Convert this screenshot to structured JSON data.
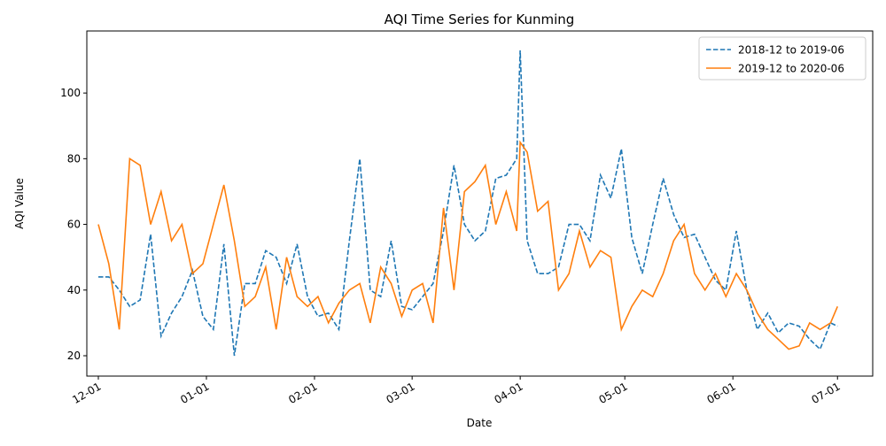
{
  "chart_data": {
    "type": "line",
    "title": "AQI Time Series for Kunming",
    "x_label": "Date",
    "y_label": "AQI Value",
    "x": [
      0,
      3,
      6,
      9,
      12,
      15,
      18,
      21,
      24,
      27,
      30,
      33,
      36,
      39,
      42,
      45,
      48,
      51,
      54,
      57,
      60,
      63,
      66,
      69,
      72,
      75,
      78,
      81,
      84,
      87,
      90,
      93,
      96,
      99,
      102,
      105,
      108,
      111,
      114,
      117,
      120,
      121,
      123,
      126,
      129,
      132,
      135,
      138,
      141,
      144,
      147,
      150,
      153,
      156,
      159,
      162,
      165,
      168,
      171,
      174,
      177,
      180,
      183,
      186,
      189,
      192,
      195,
      198,
      201,
      204,
      207,
      210,
      212
    ],
    "xlim": [
      -3.3,
      222.1
    ],
    "xticks": [
      {
        "value": 0,
        "label": "12-01"
      },
      {
        "value": 31,
        "label": "01-01"
      },
      {
        "value": 62,
        "label": "02-01"
      },
      {
        "value": 90,
        "label": "03-01"
      },
      {
        "value": 121,
        "label": "04-01"
      },
      {
        "value": 151,
        "label": "05-01"
      },
      {
        "value": 182,
        "label": "06-01"
      },
      {
        "value": 212,
        "label": "07-01"
      }
    ],
    "ylim": [
      13.8,
      118.9
    ],
    "yticks": [
      20,
      40,
      60,
      80,
      100
    ],
    "legend": "upper-right",
    "series": [
      {
        "name": "2018-12 to 2019-06",
        "color": "#1f77b4",
        "linestyle": "dashed",
        "values": [
          44,
          44,
          40,
          35,
          37,
          57,
          26,
          33,
          38,
          46,
          32,
          28,
          54,
          20,
          42,
          42,
          52,
          50,
          42,
          54,
          38,
          32,
          33,
          28,
          55,
          80,
          40,
          38,
          55,
          35,
          34,
          38,
          42,
          58,
          78,
          60,
          55,
          58,
          74,
          75,
          80,
          113,
          55,
          45,
          45,
          47,
          60,
          60,
          55,
          75,
          68,
          83,
          56,
          45,
          60,
          74,
          63,
          56,
          57,
          50,
          43,
          40,
          58,
          40,
          28,
          33,
          27,
          30,
          29,
          25,
          22,
          30,
          29
        ]
      },
      {
        "name": "2019-12 to 2020-06",
        "color": "#ff7f0e",
        "linestyle": "solid",
        "values": [
          60,
          48,
          28,
          80,
          78,
          60,
          70,
          55,
          60,
          45,
          48,
          60,
          72,
          55,
          35,
          38,
          47,
          28,
          50,
          38,
          35,
          38,
          30,
          36,
          40,
          42,
          30,
          47,
          42,
          32,
          40,
          42,
          30,
          65,
          40,
          70,
          73,
          78,
          60,
          70,
          58,
          85,
          82,
          64,
          67,
          40,
          45,
          58,
          47,
          52,
          50,
          28,
          35,
          40,
          38,
          45,
          55,
          60,
          45,
          40,
          45,
          38,
          45,
          40,
          33,
          28,
          25,
          22,
          23,
          30,
          28,
          30,
          35
        ]
      }
    ]
  }
}
